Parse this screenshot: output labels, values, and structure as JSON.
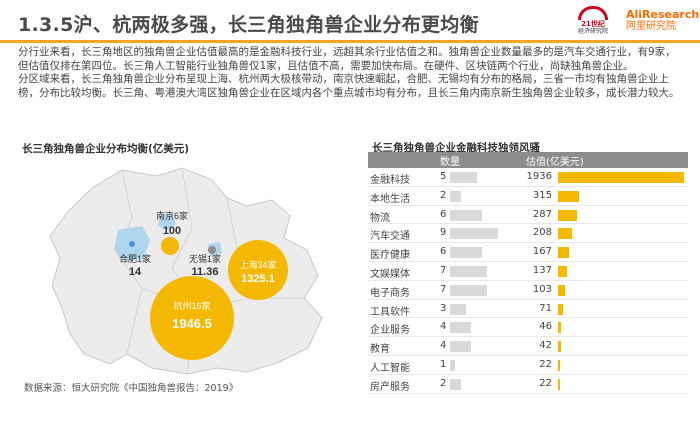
{
  "header": {
    "title": "1.3.5沪、杭两极多强，长三角独角兽企业分布更均衡",
    "logo_21c_line1": "21世纪",
    "logo_21c_line2": "经济研究院",
    "logo_ali_line1": "AliResearch",
    "logo_ali_line2": "阿里研究院"
  },
  "intro": {
    "p1": "分行业来看，长三角地区的独角兽企业估值最高的是金融科技行业，远超其余行业估值之和。独角兽企业数量最多的是汽车交通行业，有9家，但估值仅排在第四位。长三角人工智能行业独角兽仅1家，且估值不高，需要加快布局。在硬件、区块链两个行业，尚缺独角兽企业。",
    "p2": "分区域来看，长三角独角兽企业分布呈现上海、杭州两大极核带动，南京快速崛起，合肥、无锡均有分布的格局，三省一市均有独角兽企业上榜，分布比较均衡。长三角、粤港澳大湾区独角兽企业在区域内各个重点城市均有分布，且长三角内南京新生独角兽企业较多，成长潜力较大。"
  },
  "map": {
    "heading": "长三角独角兽企业分布均衡(亿美元)",
    "source": "数据来源：恒大研究院《中国独角兽报告：2019》",
    "cities": [
      {
        "name": "南京6家",
        "value": "100"
      },
      {
        "name": "合肥1家",
        "value": "14"
      },
      {
        "name": "无锡1家",
        "value": "11.36"
      },
      {
        "name": "上海34家",
        "value": "1325.1"
      },
      {
        "name": "杭州16家",
        "value": "1946.5"
      }
    ]
  },
  "table": {
    "heading": "长三角独角兽企业金融科技独领风骚",
    "col_count": "数量",
    "col_value": "估值(亿美元)",
    "rows": [
      {
        "cat": "金融科技",
        "count": "5",
        "value": "1936"
      },
      {
        "cat": "本地生活",
        "count": "2",
        "value": "315"
      },
      {
        "cat": "物流",
        "count": "6",
        "value": "287"
      },
      {
        "cat": "汽车交通",
        "count": "9",
        "value": "208"
      },
      {
        "cat": "医疗健康",
        "count": "6",
        "value": "167"
      },
      {
        "cat": "文娱媒体",
        "count": "7",
        "value": "137"
      },
      {
        "cat": "电子商务",
        "count": "7",
        "value": "103"
      },
      {
        "cat": "工具软件",
        "count": "3",
        "value": "71"
      },
      {
        "cat": "企业服务",
        "count": "4",
        "value": "46"
      },
      {
        "cat": "教育",
        "count": "4",
        "value": "42"
      },
      {
        "cat": "人工智能",
        "count": "1",
        "value": "22"
      },
      {
        "cat": "房产服务",
        "count": "2",
        "value": "22"
      }
    ]
  },
  "colors": {
    "accent": "#f5a623",
    "bubble": "#f5b800",
    "value_bar": "#f5b800",
    "count_bar": "#d9d9d9",
    "header_bg": "#8c8c8c"
  }
}
